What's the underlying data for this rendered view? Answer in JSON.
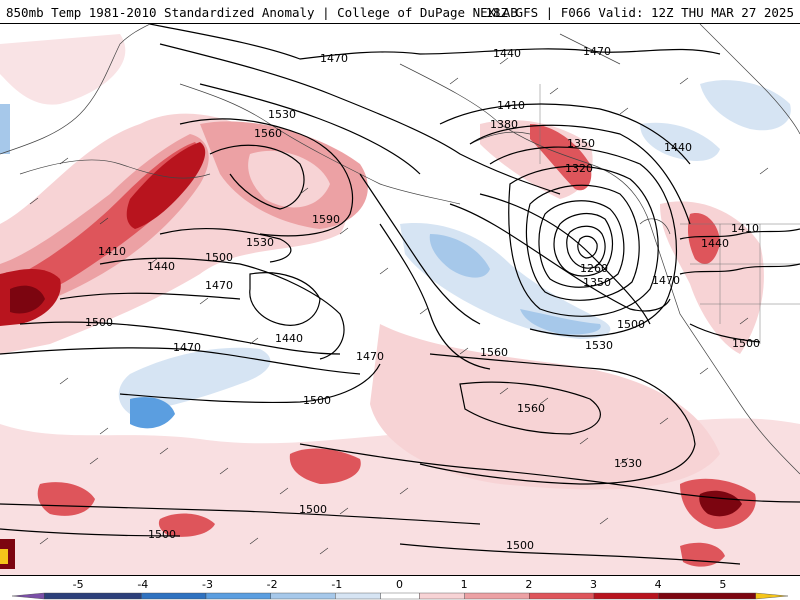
{
  "header": {
    "left_title": "850mb Temp 1981-2010 Standardized Anomaly | College of DuPage NEXLAB",
    "right_title": "18Z GFS | F066 Valid: 12Z THU MAR 27 2025"
  },
  "contour_labels": {
    "l1470a": "1470",
    "l1440a": "1440",
    "l1470b": "1470",
    "l1530a": "1530",
    "l1560a": "1560",
    "l1590": "1590",
    "l1530b": "1530",
    "l1500a": "1500",
    "l1410a": "1410",
    "l1440b": "1440",
    "l1470c": "1470",
    "l1500b": "1500",
    "l1440c": "1440",
    "l1470d": "1470",
    "l1470e": "1470",
    "l1500c": "1500",
    "l1410b": "1410",
    "l1380": "1380",
    "l1350a": "1350",
    "l1320": "1320",
    "l1440d": "1440",
    "l1410c": "1410",
    "l1440e": "1440",
    "l1260": "1260",
    "l1350b": "1350",
    "l1470f": "1470",
    "l1500d": "1500",
    "l1530c": "1530",
    "l1560b": "1560",
    "l1560c": "1560",
    "l1500e": "1500",
    "l1530d": "1530",
    "l1500f": "1500",
    "l1500g": "1500",
    "l1500h": "1500"
  },
  "colorbar": {
    "ticks": [
      "-5",
      "-4",
      "-3",
      "-2",
      "-1",
      "0",
      "1",
      "2",
      "3",
      "4",
      "5"
    ],
    "values": [
      -5,
      -4,
      -3,
      -2,
      -1,
      0,
      1,
      2,
      3,
      4,
      5
    ],
    "range": [
      -6,
      6
    ],
    "colors": {
      "neg6": "#7b4fa8",
      "neg5": "#2c3f7a",
      "neg4": "#2f72c0",
      "neg3": "#5b9ee0",
      "neg2": "#a6c8ea",
      "neg1": "#d6e4f3",
      "neutral": "#ffffff",
      "pos1": "#f7d3d5",
      "pos2": "#eca1a4",
      "pos3": "#de555b",
      "pos4": "#b8141e",
      "pos5": "#7c0510",
      "pos6": "#f5c51a"
    }
  }
}
